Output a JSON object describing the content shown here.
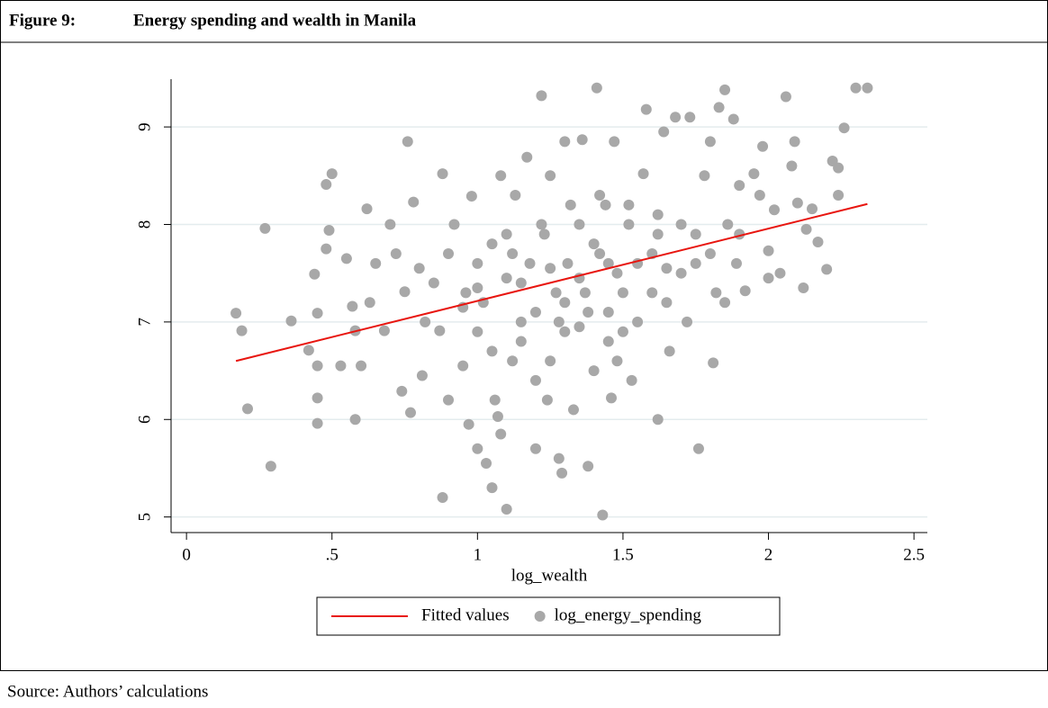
{
  "figure_label": "Figure 9:",
  "source": "Source: Authors’ calculations",
  "chart_data": {
    "type": "scatter",
    "title": "Energy spending and wealth in Manila",
    "x_label": "log_wealth",
    "xlim": [
      -0.053,
      2.546
    ],
    "ylim": [
      4.84,
      9.49
    ],
    "xticks": [
      0,
      {
        "value": 0.5,
        "label": ".5"
      },
      1,
      1.5,
      2,
      2.5
    ],
    "yticks": [
      5,
      6,
      7,
      8,
      9
    ],
    "grid": true,
    "series": [
      {
        "name": "Fitted values",
        "color": "#e8150f",
        "style": "line",
        "x": [
          0.17,
          2.34
        ],
        "values": [
          6.6,
          8.21
        ]
      },
      {
        "name": "log_energy_spending",
        "color": "#a8a8a8",
        "style": "markers",
        "x": [
          0.17,
          0.19,
          0.21,
          0.27,
          0.29,
          0.36,
          0.42,
          0.44,
          0.45,
          0.45,
          0.45,
          0.45,
          0.48,
          0.5,
          0.49,
          0.48,
          0.53,
          0.55,
          0.57,
          0.58,
          0.58,
          0.6,
          0.62,
          0.63,
          0.65,
          0.68,
          0.7,
          0.72,
          0.74,
          0.75,
          0.76,
          0.77,
          0.78,
          0.8,
          0.81,
          0.82,
          0.85,
          0.87,
          0.88,
          0.88,
          0.9,
          0.9,
          0.92,
          0.95,
          0.96,
          0.97,
          0.98,
          1.0,
          1.0,
          1.0,
          1.02,
          1.03,
          1.05,
          1.05,
          1.06,
          1.07,
          1.08,
          1.08,
          1.1,
          1.1,
          1.12,
          1.13,
          1.15,
          1.17,
          1.18,
          1.2,
          1.2,
          1.22,
          1.23,
          1.24,
          1.25,
          1.27,
          1.28,
          1.29,
          1.3,
          1.3,
          1.31,
          1.33,
          1.35,
          1.36,
          1.37,
          1.38,
          1.4,
          1.41,
          1.42,
          1.43,
          1.44,
          1.45,
          1.46,
          1.47,
          1.48,
          1.5,
          1.52,
          1.53,
          1.55,
          1.57,
          1.58,
          1.6,
          1.62,
          1.62,
          1.64,
          1.65,
          1.66,
          1.68,
          1.7,
          1.72,
          1.73,
          1.75,
          1.76,
          1.78,
          1.8,
          1.81,
          1.82,
          1.83,
          1.85,
          1.86,
          1.88,
          1.89,
          1.9,
          1.92,
          1.95,
          1.97,
          1.98,
          2.0,
          2.0,
          2.02,
          2.04,
          2.06,
          2.08,
          2.09,
          2.1,
          2.12,
          2.13,
          2.15,
          2.17,
          2.2,
          2.22,
          2.24,
          2.24,
          2.26,
          2.3,
          2.34,
          1.15,
          1.25,
          1.35,
          1.45,
          1.2,
          1.3,
          1.4,
          1.1,
          1.5,
          1.6,
          1.0,
          0.95,
          1.05,
          1.15,
          1.25,
          1.35,
          1.45,
          1.55,
          1.65,
          1.7,
          1.75,
          1.8,
          1.85,
          1.9,
          1.12,
          1.22,
          1.32,
          1.42,
          1.52,
          1.62,
          1.28,
          1.38,
          1.48
        ],
        "values": [
          7.09,
          6.91,
          6.11,
          7.96,
          5.52,
          7.01,
          6.71,
          7.49,
          6.55,
          6.22,
          5.96,
          7.09,
          8.41,
          8.52,
          7.94,
          7.75,
          6.55,
          7.65,
          7.16,
          6.91,
          6.0,
          6.55,
          8.16,
          7.2,
          7.6,
          6.91,
          8.0,
          7.7,
          6.29,
          7.31,
          8.85,
          6.07,
          8.23,
          7.55,
          6.45,
          7.0,
          7.4,
          6.91,
          8.52,
          5.2,
          6.2,
          7.7,
          8.0,
          6.55,
          7.3,
          5.95,
          8.29,
          5.7,
          7.6,
          6.9,
          7.2,
          5.55,
          5.3,
          7.8,
          6.2,
          6.03,
          8.5,
          5.85,
          5.08,
          7.45,
          6.6,
          8.3,
          7.0,
          8.69,
          7.6,
          5.7,
          6.4,
          9.32,
          7.9,
          6.2,
          8.5,
          7.3,
          5.6,
          5.45,
          8.85,
          6.9,
          7.6,
          6.1,
          8.0,
          8.87,
          7.3,
          5.52,
          6.5,
          9.4,
          7.7,
          5.02,
          8.2,
          7.1,
          6.22,
          8.85,
          7.5,
          6.9,
          8.0,
          6.4,
          7.6,
          8.52,
          9.18,
          7.3,
          6.0,
          8.1,
          8.95,
          7.55,
          6.7,
          9.1,
          8.0,
          7.0,
          9.1,
          7.6,
          5.7,
          8.5,
          8.85,
          6.58,
          7.3,
          9.2,
          9.38,
          8.0,
          9.08,
          7.6,
          8.4,
          7.32,
          8.52,
          8.3,
          8.8,
          7.45,
          7.73,
          8.15,
          7.5,
          9.31,
          8.6,
          8.85,
          8.22,
          7.35,
          7.95,
          8.16,
          7.82,
          7.54,
          8.65,
          8.3,
          8.58,
          8.99,
          9.4,
          9.4,
          7.4,
          7.55,
          7.45,
          7.6,
          7.1,
          7.2,
          7.8,
          7.9,
          7.3,
          7.7,
          7.35,
          7.15,
          6.7,
          6.8,
          6.6,
          6.95,
          6.8,
          7.0,
          7.2,
          7.5,
          7.9,
          7.7,
          7.2,
          7.9,
          7.7,
          8.0,
          8.2,
          8.3,
          8.2,
          7.9,
          7.0,
          7.1,
          6.6
        ]
      }
    ]
  }
}
